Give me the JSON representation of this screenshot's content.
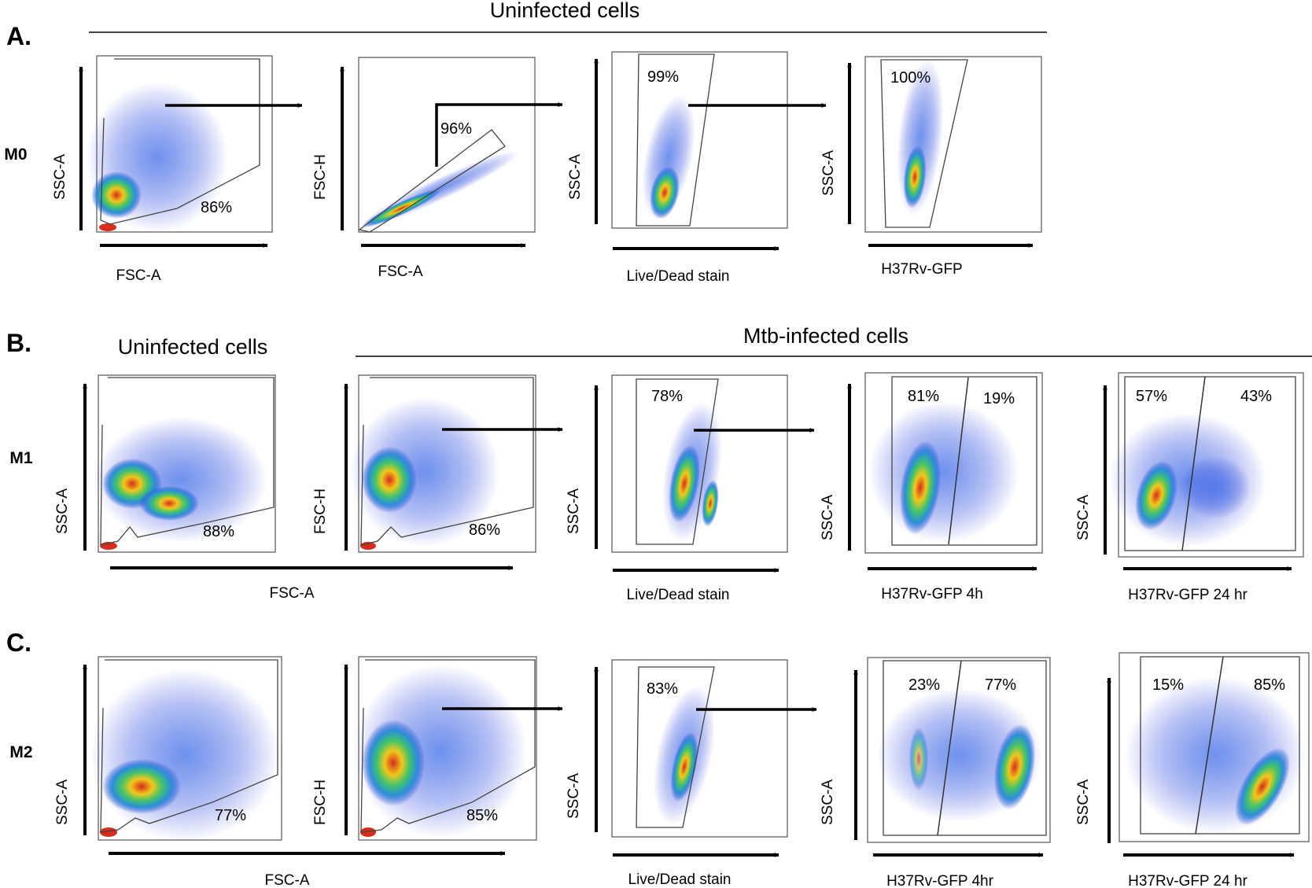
{
  "figure": {
    "panels": [
      {
        "letter": "A.",
        "row_label": "M0",
        "section_titles": [
          "Uninfected cells"
        ],
        "plots": [
          {
            "y_label": "SSC-A",
            "x_label": "FSC-A",
            "gates": [
              "86%"
            ]
          },
          {
            "y_label": "FSC-H",
            "x_label": "FSC-A",
            "gates": [
              "96%"
            ]
          },
          {
            "y_label": "SSC-A",
            "x_label": "Live/Dead stain",
            "gates": [
              "99%"
            ]
          },
          {
            "y_label": "SSC-A",
            "x_label": "H37Rv-GFP",
            "gates": [
              "100%"
            ]
          }
        ]
      },
      {
        "letter": "B.",
        "row_label": "M1",
        "section_titles": [
          "Uninfected cells",
          "Mtb-infected cells"
        ],
        "plots": [
          {
            "y_label": "SSC-A",
            "x_label": "FSC-A",
            "gates": [
              "88%"
            ]
          },
          {
            "y_label": "FSC-H",
            "x_label": "",
            "gates": [
              "86%"
            ]
          },
          {
            "y_label": "SSC-A",
            "x_label": "Live/Dead stain",
            "gates": [
              "78%"
            ]
          },
          {
            "y_label": "SSC-A",
            "x_label": "H37Rv-GFP 4h",
            "gates": [
              "81%",
              "19%"
            ]
          },
          {
            "y_label": "SSC-A",
            "x_label": "H37Rv-GFP 24 hr",
            "gates": [
              "57%",
              "43%"
            ]
          }
        ]
      },
      {
        "letter": "C.",
        "row_label": "M2",
        "section_titles": [],
        "plots": [
          {
            "y_label": "SSC-A",
            "x_label": "FSC-A",
            "gates": [
              "77%"
            ]
          },
          {
            "y_label": "FSC-H",
            "x_label": "",
            "gates": [
              "85%"
            ]
          },
          {
            "y_label": "SSC-A",
            "x_label": "Live/Dead stain",
            "gates": [
              "83%"
            ]
          },
          {
            "y_label": "SSC-A",
            "x_label": "H37Rv-GFP 4hr",
            "gates": [
              "23%",
              "77%"
            ]
          },
          {
            "y_label": "SSC-A",
            "x_label": "H37Rv-GFP 24 hr",
            "gates": [
              "15%",
              "85%"
            ]
          }
        ]
      }
    ]
  }
}
